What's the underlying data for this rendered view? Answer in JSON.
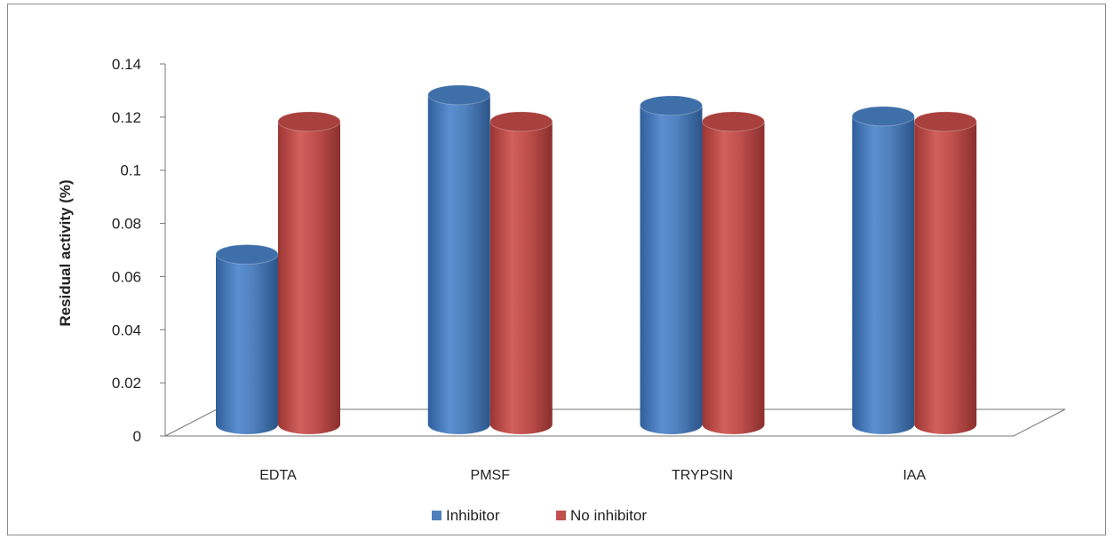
{
  "chart_data": {
    "type": "bar",
    "title": "",
    "xlabel": "",
    "ylabel": "Residual activity (%)",
    "categories": [
      "EDTA",
      "PMSF",
      "TRYPSIN",
      "IAA"
    ],
    "series": [
      {
        "name": "Inhibitor",
        "values": [
          0.064,
          0.124,
          0.12,
          0.116
        ],
        "color": "#4f81bd"
      },
      {
        "name": "No inhibitor",
        "values": [
          0.114,
          0.114,
          0.114,
          0.114
        ],
        "color": "#c0504d"
      }
    ],
    "ylim": [
      0,
      0.14
    ],
    "yticks": [
      0,
      0.02,
      0.04,
      0.06,
      0.08,
      0.1,
      0.12,
      0.14
    ],
    "ytick_labels": [
      "0",
      "0.02",
      "0.04",
      "0.06",
      "0.08",
      "0.1",
      "0.12",
      "0.14"
    ],
    "grid": false,
    "legend_position": "bottom",
    "style": "3d-cylinder"
  }
}
